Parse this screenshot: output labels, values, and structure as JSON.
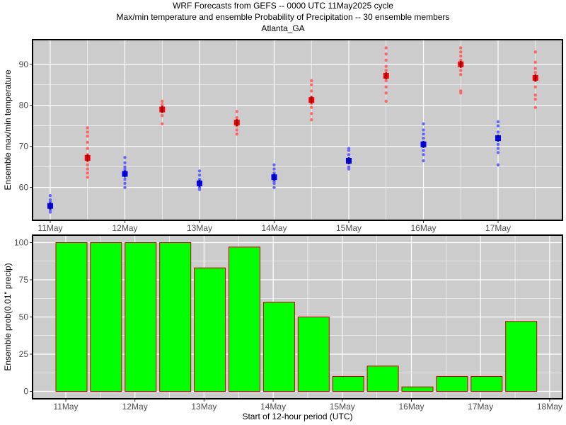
{
  "titles": {
    "line1": "WRF Forecasts from GEFS --  0000 UTC 11May2025  cycle",
    "line2": "Max/min temperature and ensemble Probability of Precipitation --  30 ensemble members",
    "line3": "Atlanta_GA"
  },
  "colors": {
    "panel_bg": "#cccccc",
    "grid": "#ffffff",
    "max_points": "#ff6666",
    "max_median": "#ff0000",
    "min_points": "#6666ff",
    "min_median": "#0000ff",
    "bar_fill": "#00ff00",
    "bar_edge": "#cc0000"
  },
  "chart_data": [
    {
      "type": "scatter",
      "title": "",
      "xlabel": "",
      "ylabel": "Ensemble max/min temperature",
      "x_tick_labels": [
        "11May",
        "12May",
        "13May",
        "14May",
        "15May",
        "16May",
        "17May"
      ],
      "y_ticks": [
        60,
        70,
        80,
        90
      ],
      "ylim": [
        52,
        96
      ],
      "grid": true,
      "series": [
        {
          "kind": "min",
          "x": [
            0.0,
            1.0,
            2.0,
            3.0,
            4.0,
            5.0,
            6.0
          ],
          "median": [
            55.5,
            63.3,
            61.0,
            62.5,
            66.5,
            70.5,
            72.0
          ],
          "members": [
            [
              54,
              54.5,
              55,
              55.5,
              56,
              56.5,
              57,
              58
            ],
            [
              60,
              61,
              62,
              63,
              64,
              64.5,
              65,
              66,
              67.3
            ],
            [
              59.5,
              60,
              60.5,
              61,
              61.5,
              62,
              63,
              64
            ],
            [
              60,
              61,
              61.5,
              62,
              63,
              63.5,
              64.5,
              65.5
            ],
            [
              64.5,
              65,
              66,
              66.5,
              67,
              68,
              69,
              69.5
            ],
            [
              66.5,
              68,
              69,
              70,
              71,
              72,
              73,
              74,
              75.5
            ],
            [
              65.5,
              68.5,
              69.5,
              70.5,
              71.5,
              72.5,
              73.5,
              75,
              76
            ]
          ]
        },
        {
          "kind": "max",
          "x": [
            0.5,
            1.5,
            2.5,
            3.5,
            4.5,
            5.5,
            6.5
          ],
          "median": [
            67.2,
            79.0,
            75.8,
            81.3,
            87.2,
            90.0,
            86.7
          ],
          "members": [
            [
              62.5,
              63.5,
              64.5,
              65.5,
              66.5,
              68,
              69.5,
              71,
              72.5,
              73.5,
              74.5
            ],
            [
              75.5,
              77.5,
              78.5,
              79.5,
              80.2,
              81
            ],
            [
              73,
              74,
              75,
              76,
              77,
              78.5
            ],
            [
              76.5,
              78,
              79.5,
              80.5,
              82,
              83.5,
              85,
              86
            ],
            [
              81,
              83,
              84.5,
              86,
              87,
              88.5,
              89.5,
              91,
              92.5,
              94
            ],
            [
              83,
              83.5,
              87.5,
              88.5,
              89.5,
              91,
              92,
              93,
              94
            ],
            [
              79.5,
              81.5,
              82.5,
              84.5,
              86,
              88,
              89,
              90.5,
              93
            ]
          ]
        }
      ]
    },
    {
      "type": "bar",
      "title": "",
      "xlabel": "Start of 12-hour period (UTC)",
      "ylabel": "Ensemble prob(0.01\" precip)",
      "x_tick_labels": [
        "11May",
        "12May",
        "13May",
        "14May",
        "15May",
        "16May",
        "17May",
        "18May"
      ],
      "y_ticks": [
        0,
        25,
        50,
        75,
        100
      ],
      "ylim": [
        -5,
        105
      ],
      "grid": true,
      "values": [
        100,
        100,
        100,
        100,
        83,
        97,
        60,
        50,
        10,
        17,
        3,
        10,
        10,
        47
      ]
    }
  ]
}
